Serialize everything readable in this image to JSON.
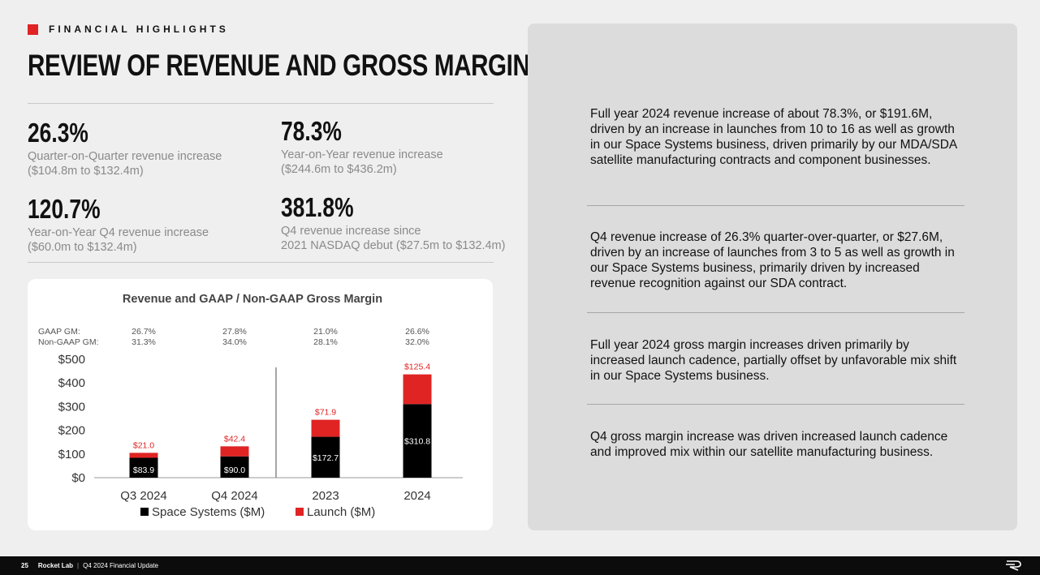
{
  "header": {
    "section": "FINANCIAL HIGHLIGHTS",
    "title": "REVIEW OF REVENUE AND GROSS MARGINS"
  },
  "stats": [
    {
      "value": "26.3%",
      "line1": "Quarter-on-Quarter revenue increase",
      "line2": "($104.8m to $132.4m)"
    },
    {
      "value": "78.3%",
      "line1": "Year-on-Year revenue increase",
      "line2": "($244.6m to $436.2m)"
    },
    {
      "value": "120.7%",
      "line1": "Year-on-Year Q4 revenue increase",
      "line2": "($60.0m to $132.4m)"
    },
    {
      "value": "381.8%",
      "line1": "Q4 revenue increase since",
      "line2": "2021 NASDAQ debut ($27.5m to $132.4m)"
    }
  ],
  "chart_data": {
    "type": "bar",
    "stacked": true,
    "title": "Revenue and GAAP / Non-GAAP Gross Margin",
    "categories": [
      "Q3 2024",
      "Q4 2024",
      "2023",
      "2024"
    ],
    "series": [
      {
        "name": "Space Systems ($M)",
        "values": [
          83.9,
          90.0,
          172.7,
          310.8
        ],
        "color": "#000000",
        "labels": [
          "$83.9",
          "$90.0",
          "$172.7",
          "$310.8"
        ]
      },
      {
        "name": "Launch ($M)",
        "values": [
          21.0,
          42.4,
          71.9,
          125.4
        ],
        "color": "#e02424",
        "labels": [
          "$21.0",
          "$42.4",
          "$71.9",
          "$125.4"
        ]
      }
    ],
    "gm_labels": {
      "gaap": "GAAP GM:",
      "non_gaap": "Non-GAAP GM:"
    },
    "gaap_gm": [
      "26.7%",
      "27.8%",
      "21.0%",
      "26.6%"
    ],
    "non_gaap_gm": [
      "31.3%",
      "34.0%",
      "28.1%",
      "32.0%"
    ],
    "yticks": [
      "$0",
      "$100",
      "$200",
      "$300",
      "$400",
      "$500"
    ],
    "ylim": [
      0,
      500
    ],
    "legend_position": "bottom",
    "separator_after_category": 1
  },
  "bullets": [
    "Full year 2024 revenue increase of about 78.3%, or $191.6M, driven by an increase in launches from 10 to 16 as well as growth in our Space Systems business, driven primarily by our MDA/SDA satellite manufacturing contracts and component businesses.",
    "Q4 revenue increase of 26.3% quarter-over-quarter, or $27.6M, driven by an increase of launches from 3 to 5 as well as growth in our Space Systems business, primarily driven by increased revenue recognition against our SDA contract.",
    "Full year 2024 gross margin increases driven primarily by increased launch cadence, partially offset by unfavorable mix shift in our Space Systems business.",
    "Q4 gross margin increase was driven increased launch cadence and improved mix within our satellite manufacturing business."
  ],
  "footer": {
    "page": "25",
    "company": "Rocket Lab",
    "doc": "Q4 2024 Financial Update"
  }
}
